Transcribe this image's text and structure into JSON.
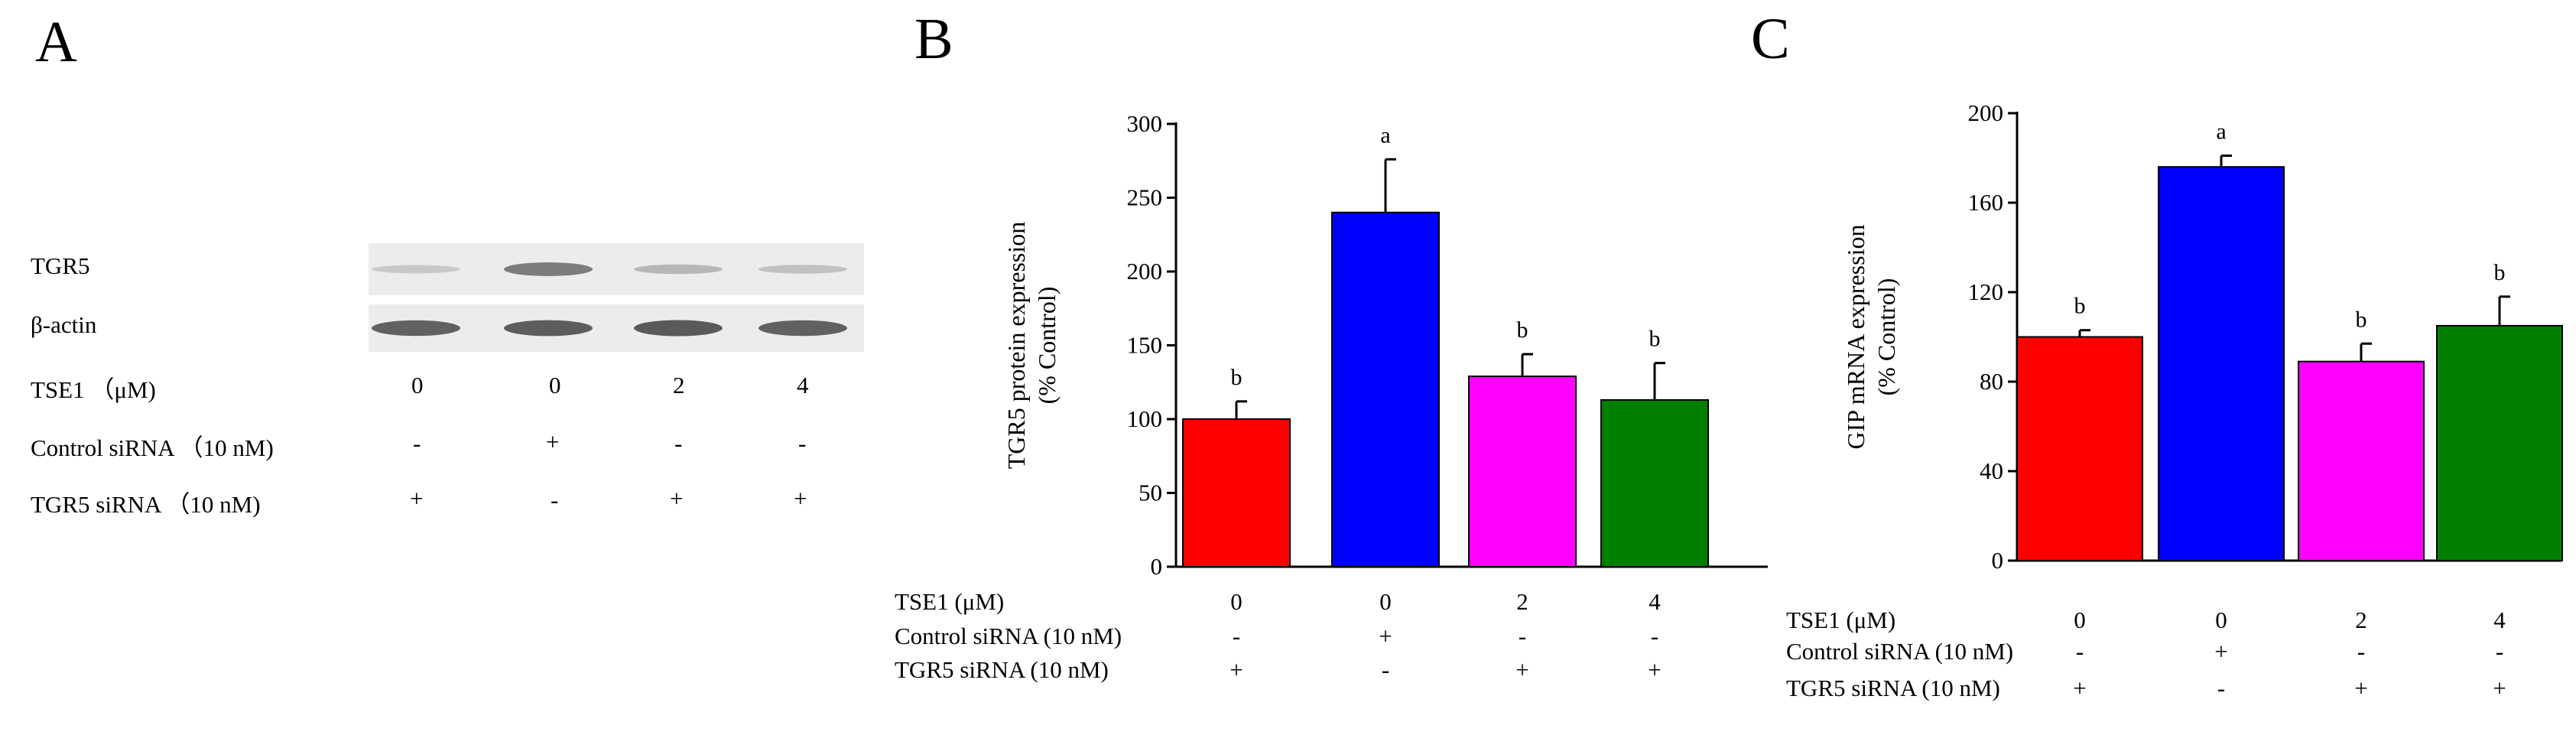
{
  "panels": {
    "a": "A",
    "b": "B",
    "c": "C"
  },
  "western_blot": {
    "bands": [
      {
        "label": "TGR5",
        "intensities": [
          0.18,
          0.62,
          0.28,
          0.22
        ]
      },
      {
        "label": "β-actin",
        "intensities": [
          0.78,
          0.8,
          0.82,
          0.78
        ]
      }
    ],
    "rows": [
      {
        "label": "TSE1 （μM)",
        "values": [
          "0",
          "0",
          "2",
          "4"
        ]
      },
      {
        "label": "Control siRNA （10 nM)",
        "values": [
          "-",
          "+",
          "-",
          "-"
        ]
      },
      {
        "label": "TGR5 siRNA （10 nM)",
        "values": [
          "+",
          "-",
          "+",
          "+"
        ]
      }
    ]
  },
  "chart_data": [
    {
      "type": "bar",
      "panel": "B",
      "ylabel_line1": "TGR5 protein expression",
      "ylabel_line2": "(% Control)",
      "ylim": [
        0,
        300
      ],
      "yticks": [
        0,
        50,
        100,
        150,
        200,
        250,
        300
      ],
      "categories": [
        "TSE1 0 / TGR5 siRNA",
        "TSE1 0 / Control siRNA",
        "TSE1 2 / TGR5 siRNA",
        "TSE1 4 / TGR5 siRNA"
      ],
      "values": [
        100,
        240,
        129,
        113
      ],
      "errors": [
        12,
        36,
        15,
        25
      ],
      "letters": [
        "b",
        "a",
        "b",
        "b"
      ],
      "colors": [
        "#ff0000",
        "#0000ff",
        "#ff00ff",
        "#007f00"
      ],
      "condition_rows": [
        {
          "label": "TSE1 (μM)",
          "values": [
            "0",
            "0",
            "2",
            "4"
          ]
        },
        {
          "label": "Control siRNA (10 nM)",
          "values": [
            "-",
            "+",
            "-",
            "-"
          ]
        },
        {
          "label": "TGR5 siRNA (10 nM)",
          "values": [
            "+",
            "-",
            "+",
            "+"
          ]
        }
      ]
    },
    {
      "type": "bar",
      "panel": "C",
      "ylabel_line1": "GIP mRNA expression",
      "ylabel_line2": "(% Control)",
      "ylim": [
        0,
        200
      ],
      "yticks": [
        0,
        40,
        80,
        120,
        160,
        200
      ],
      "categories": [
        "TSE1 0 / TGR5 siRNA",
        "TSE1 0 / Control siRNA",
        "TSE1 2 / TGR5 siRNA",
        "TSE1 4 / TGR5 siRNA"
      ],
      "values": [
        100,
        176,
        89,
        105
      ],
      "errors": [
        3,
        5,
        8,
        13
      ],
      "letters": [
        "b",
        "a",
        "b",
        "b"
      ],
      "colors": [
        "#ff0000",
        "#0000ff",
        "#ff00ff",
        "#007f00"
      ],
      "condition_rows": [
        {
          "label": "TSE1 (μM)",
          "values": [
            "0",
            "0",
            "2",
            "4"
          ]
        },
        {
          "label": "Control siRNA (10 nM)",
          "values": [
            "-",
            "+",
            "-",
            "-"
          ]
        },
        {
          "label": "TGR5 siRNA (10 nM)",
          "values": [
            "+",
            "-",
            "+",
            "+"
          ]
        }
      ]
    }
  ]
}
